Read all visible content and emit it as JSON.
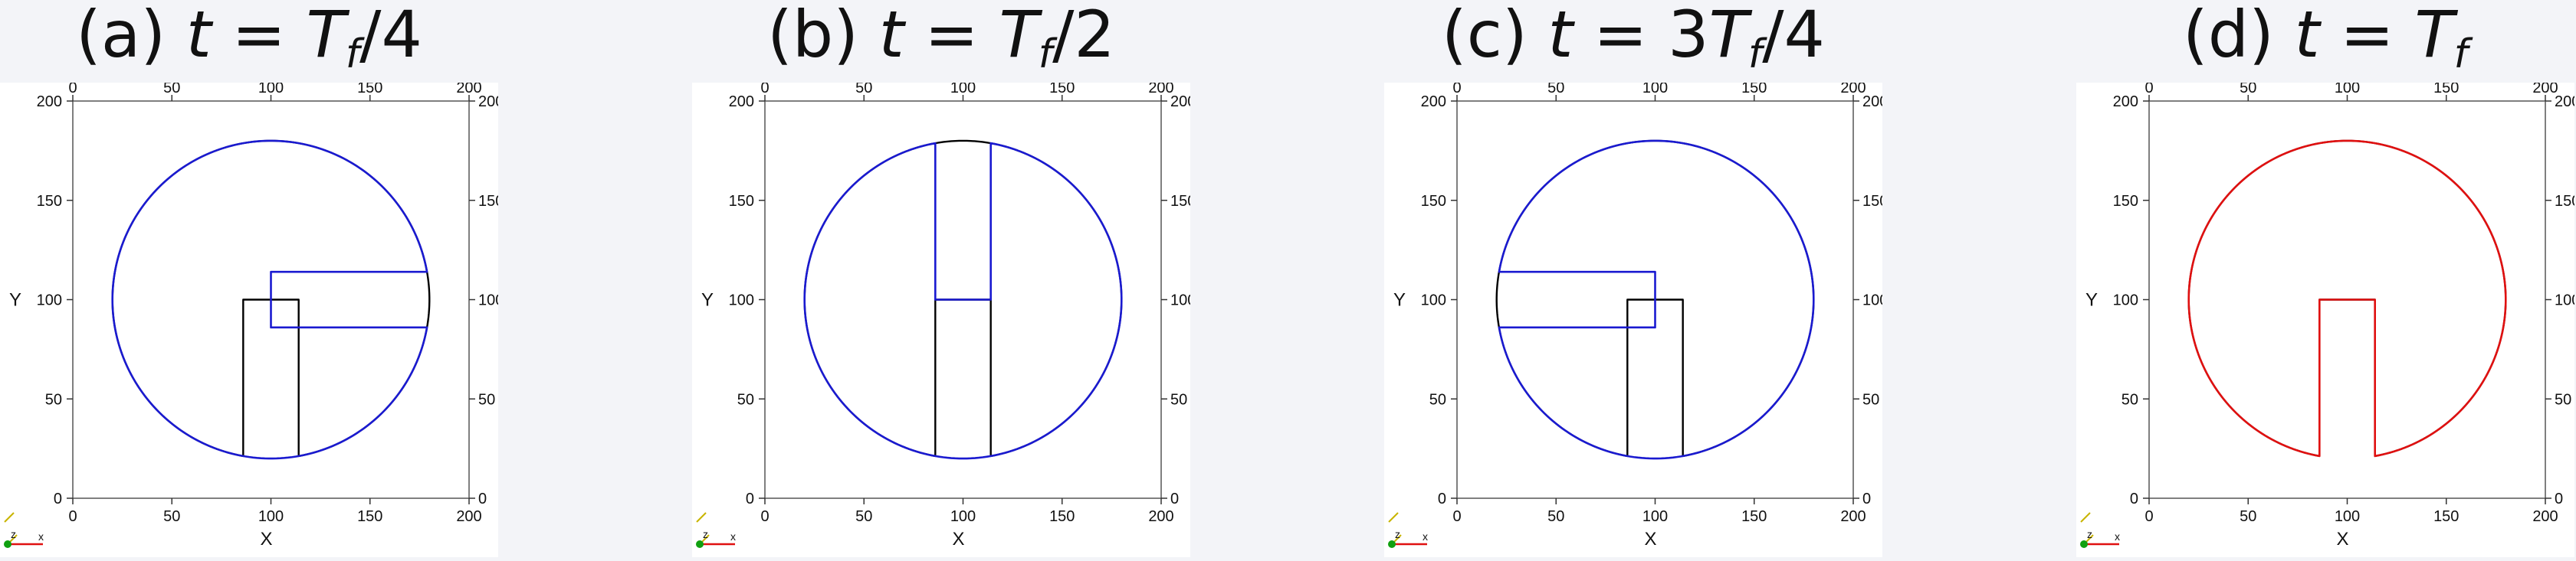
{
  "chart_data": [
    {
      "type": "line",
      "panel_label": "(a)",
      "time_value": "T_f/4",
      "x_label": "X",
      "y_label": "Y",
      "xlim": [
        0,
        200
      ],
      "ylim": [
        0,
        200
      ],
      "x_ticks": [
        0,
        50,
        100,
        150,
        200
      ],
      "y_ticks": [
        0,
        50,
        100,
        150,
        200
      ],
      "series": [
        {
          "kind": "reference",
          "color": "#000000",
          "shape": "zalesak_disk",
          "center": [
            100,
            100
          ],
          "radius": 80,
          "slot_x": [
            86,
            114
          ],
          "slot_top": 100
        },
        {
          "kind": "computed",
          "color": "#1a1ad0",
          "shape": "zalesak_disk",
          "center": [
            100,
            100
          ],
          "radius": 80,
          "rotation_deg": 90,
          "slot_x": [
            86,
            114
          ],
          "slot_top": 100
        }
      ]
    },
    {
      "type": "line",
      "panel_label": "(b)",
      "time_value": "T_f/2",
      "x_label": "X",
      "y_label": "Y",
      "xlim": [
        0,
        200
      ],
      "ylim": [
        0,
        200
      ],
      "x_ticks": [
        0,
        50,
        100,
        150,
        200
      ],
      "y_ticks": [
        0,
        50,
        100,
        150,
        200
      ],
      "series": [
        {
          "kind": "reference",
          "color": "#000000",
          "shape": "zalesak_disk",
          "center": [
            100,
            100
          ],
          "radius": 80,
          "slot_x": [
            86,
            114
          ],
          "slot_top": 100
        },
        {
          "kind": "computed",
          "color": "#1a1ad0",
          "shape": "zalesak_disk",
          "center": [
            100,
            100
          ],
          "radius": 80,
          "rotation_deg": 180,
          "slot_x": [
            86,
            114
          ],
          "slot_top": 100
        }
      ]
    },
    {
      "type": "line",
      "panel_label": "(c)",
      "time_value": "3T_f/4",
      "x_label": "X",
      "y_label": "Y",
      "xlim": [
        0,
        200
      ],
      "ylim": [
        0,
        200
      ],
      "x_ticks": [
        0,
        50,
        100,
        150,
        200
      ],
      "y_ticks": [
        0,
        50,
        100,
        150,
        200
      ],
      "series": [
        {
          "kind": "reference",
          "color": "#000000",
          "shape": "zalesak_disk",
          "center": [
            100,
            100
          ],
          "radius": 80,
          "slot_x": [
            86,
            114
          ],
          "slot_top": 100
        },
        {
          "kind": "computed",
          "color": "#1a1ad0",
          "shape": "zalesak_disk",
          "center": [
            100,
            100
          ],
          "radius": 80,
          "rotation_deg": 270,
          "slot_x": [
            86,
            114
          ],
          "slot_top": 100
        }
      ]
    },
    {
      "type": "line",
      "panel_label": "(d)",
      "time_value": "T_f",
      "x_label": "X",
      "y_label": "Y",
      "xlim": [
        0,
        200
      ],
      "ylim": [
        0,
        200
      ],
      "x_ticks": [
        0,
        50,
        100,
        150,
        200
      ],
      "y_ticks": [
        0,
        50,
        100,
        150,
        200
      ],
      "series": [
        {
          "kind": "reference",
          "color": "#000000",
          "shape": "zalesak_disk",
          "center": [
            100,
            100
          ],
          "radius": 80,
          "slot_x": [
            86,
            114
          ],
          "slot_top": 100
        },
        {
          "kind": "computed",
          "color": "#e01010",
          "shape": "zalesak_disk",
          "center": [
            100,
            100
          ],
          "radius": 80,
          "rotation_deg": 0,
          "slot_x": [
            86,
            114
          ],
          "slot_top": 100
        }
      ]
    }
  ],
  "orientation_axes": {
    "x": "x",
    "z": "z",
    "y_color": "#c8b400",
    "x_color": "#e01010",
    "z_color": "#10a010"
  }
}
